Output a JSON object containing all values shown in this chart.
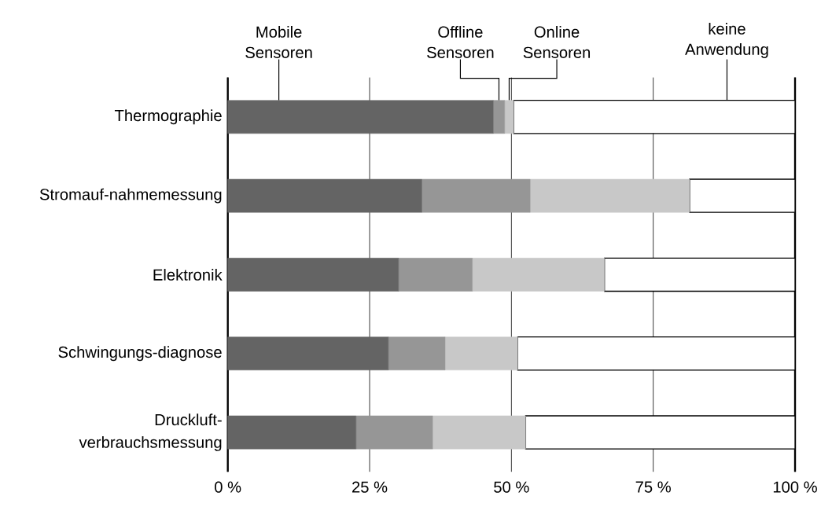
{
  "chart_data": {
    "type": "bar",
    "orientation": "horizontal",
    "stacked": true,
    "categories": [
      "Thermographie",
      "Stromauf-nahmemessung",
      "Elektronik",
      "Schwingungs-diagnose",
      "Druckluft-verbrauchsmessung"
    ],
    "series": [
      {
        "name": "Mobile Sensoren",
        "color": "#646464",
        "values": [
          46.8,
          34.2,
          30.1,
          28.3,
          22.6
        ]
      },
      {
        "name": "Offline Sensoren",
        "color": "#969696",
        "values": [
          2.0,
          19.1,
          13.0,
          10.0,
          13.5
        ]
      },
      {
        "name": "Online Sensoren",
        "color": "#c8c8c8",
        "values": [
          1.6,
          28.1,
          23.3,
          12.8,
          16.4
        ]
      },
      {
        "name": "keine Anwendung",
        "color": "#ffffff",
        "values": [
          49.6,
          18.6,
          33.6,
          48.9,
          47.5
        ]
      }
    ],
    "xlim": [
      0,
      100
    ],
    "xticks": [
      {
        "value": 0,
        "label": "0 %"
      },
      {
        "value": 25,
        "label": "25 %"
      },
      {
        "value": 50,
        "label": "50 %"
      },
      {
        "value": 75,
        "label": "75 %"
      },
      {
        "value": 100,
        "label": "100 %"
      }
    ],
    "grid": "x"
  }
}
